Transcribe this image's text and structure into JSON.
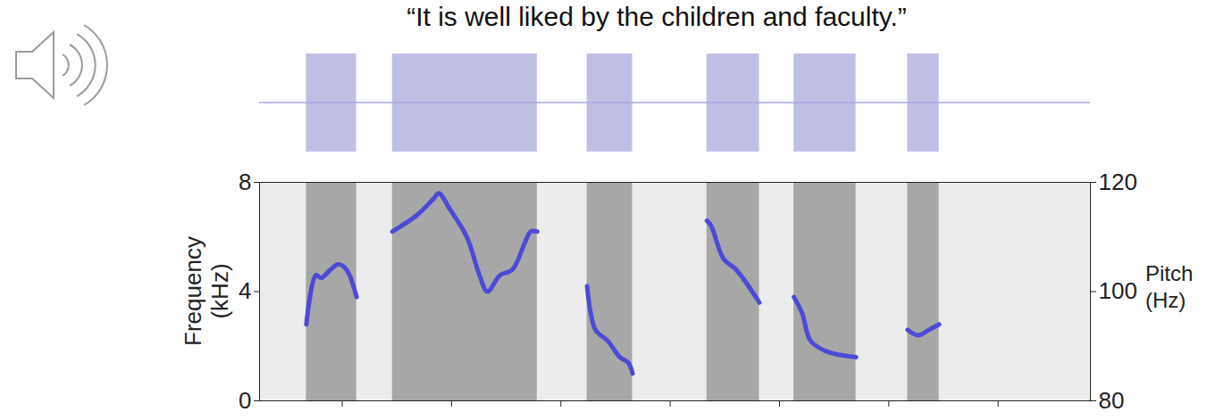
{
  "chart_data": {
    "type": "line",
    "title": "“It is well liked by the children and faculty.”",
    "ylabel": "Frequency (kHz)",
    "y2label": "Pitch (Hz)",
    "xlim": [
      0.06,
      1.96
    ],
    "xticks": [
      0.25,
      0.5,
      0.75,
      1,
      1.25,
      1.5,
      1.75
    ],
    "ylim": [
      0,
      8
    ],
    "yticks": [
      0,
      4,
      8
    ],
    "y2lim": [
      80,
      120
    ],
    "y2ticks": [
      80,
      100,
      120
    ],
    "tick_labels": "y",
    "x": [
      0.167,
      0.189,
      0.201,
      0.222,
      0.241,
      0.259,
      0.282,
      0.32,
      0.364,
      0.42,
      0.458,
      0.47,
      0.496,
      0.534,
      0.563,
      0.581,
      0.61,
      0.638,
      0.667,
      0.68,
      0.695,
      0.75,
      0.809,
      0.828,
      0.856,
      0.884,
      0.903,
      0.913,
      1.0,
      1.083,
      1.093,
      1.121,
      1.15,
      1.203,
      1.24,
      1.282,
      1.301,
      1.32,
      1.358,
      1.424,
      1.48,
      1.542,
      1.566,
      1.591,
      1.614
    ],
    "series": [
      {
        "color": "#4b4bd6",
        "axis": "y2",
        "values": [
          94,
          103,
          102.5,
          104,
          105,
          104,
          99,
          null,
          111,
          114,
          117,
          118,
          115,
          110,
          103,
          100,
          103,
          104,
          109,
          111,
          111,
          null,
          101,
          93,
          91,
          88,
          87,
          85,
          null,
          113,
          112,
          106,
          104,
          98,
          null,
          99,
          96,
          91,
          89,
          88,
          null,
          93,
          92,
          93,
          94
        ]
      }
    ]
  }
}
